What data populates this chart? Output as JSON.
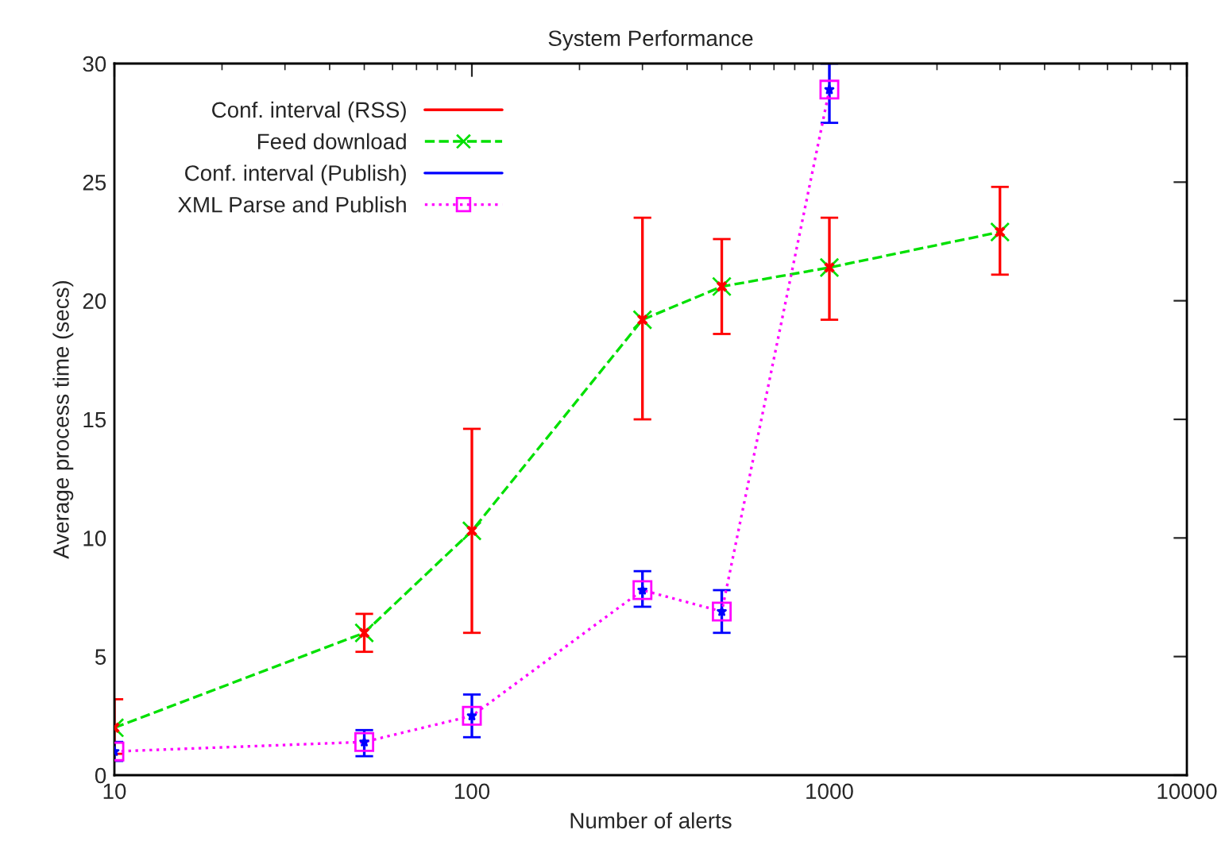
{
  "chart_data": {
    "type": "line",
    "title": "System Performance",
    "xlabel": "Number of alerts",
    "ylabel": "Average process time (secs)",
    "log": "x",
    "xlim": [
      10,
      10000
    ],
    "xticks": [
      10,
      100,
      1000,
      10000
    ],
    "ylim": [
      0,
      30
    ],
    "yticks": [
      0,
      5,
      10,
      15,
      20,
      25,
      30
    ],
    "grid": false,
    "legend": "top left",
    "series": [
      {
        "name": "Conf. interval (RSS)",
        "type": "scatter",
        "marker": "cross",
        "color": "#ff0000",
        "x": [
          10,
          50,
          100,
          300,
          500,
          1000,
          3000
        ],
        "values": [
          2.0,
          6.0,
          10.3,
          19.2,
          20.6,
          21.4,
          22.9
        ],
        "errors": [
          [
            0.9,
            3.2
          ],
          [
            5.2,
            6.8
          ],
          [
            6.0,
            14.6
          ],
          [
            15.0,
            23.5
          ],
          [
            18.6,
            22.6
          ],
          [
            19.2,
            23.5
          ],
          [
            21.1,
            24.8
          ]
        ]
      },
      {
        "name": "Feed download",
        "marker": "cross",
        "line_style": "dashed",
        "color": "#00e000",
        "x": [
          10,
          50,
          100,
          300,
          500,
          1000,
          3000
        ],
        "values": [
          2.0,
          6.0,
          10.3,
          19.2,
          20.6,
          21.4,
          22.9
        ]
      },
      {
        "name": "Conf. interval (Publish)",
        "type": "scatter",
        "marker": "star",
        "color": "#0000ff",
        "x": [
          10,
          50,
          100,
          300,
          500,
          1000
        ],
        "values": [
          1.0,
          1.4,
          2.5,
          7.8,
          6.9,
          28.9
        ],
        "errors": [
          [
            0.6,
            1.4
          ],
          [
            0.8,
            1.9
          ],
          [
            1.6,
            3.4
          ],
          [
            7.1,
            8.6
          ],
          [
            6.0,
            7.8
          ],
          [
            27.5,
            30.0
          ]
        ]
      },
      {
        "name": "XML Parse and Publish",
        "marker": "square",
        "line_style": "dotted",
        "color": "#ff00ff",
        "x": [
          10,
          50,
          100,
          300,
          500,
          1000
        ],
        "values": [
          1.0,
          1.4,
          2.5,
          7.8,
          6.9,
          28.9
        ]
      }
    ]
  }
}
